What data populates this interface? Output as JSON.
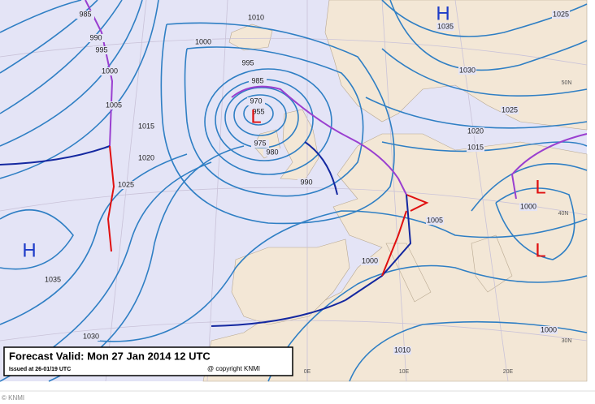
{
  "forecast_box": {
    "valid": "Forecast Valid:  Mon 27 Jan 2014 12 UTC",
    "issued": "Issued at 26-01/19 UTC",
    "copyright": "@ copyright KNMI"
  },
  "pressure_centers": [
    "H",
    "H",
    "L",
    "L",
    "L"
  ],
  "isobar_labels": [
    "985",
    "990",
    "995",
    "1000",
    "1005",
    "1010",
    "1000",
    "995",
    "985",
    "970",
    "955",
    "975",
    "980",
    "990",
    "1015",
    "1020",
    "1025",
    "1035",
    "1030",
    "1035",
    "1030",
    "1025",
    "1025",
    "1020",
    "1015",
    "1005",
    "1000",
    "1000",
    "1010",
    "1000"
  ],
  "graticule_labels": [
    "50N",
    "40N",
    "30N",
    "0E",
    "10E",
    "20E"
  ],
  "footer": "© KNMI"
}
